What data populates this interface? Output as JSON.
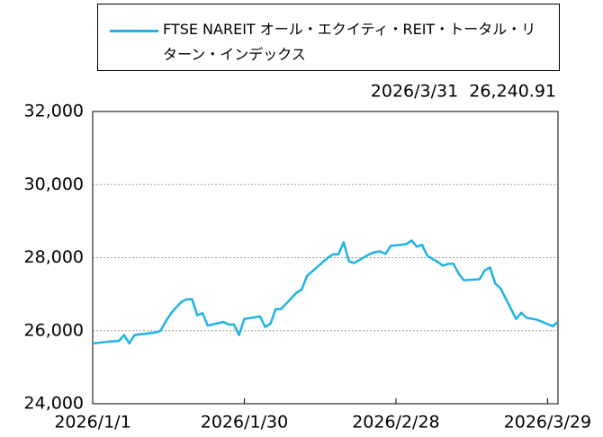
{
  "chart_data": {
    "type": "line",
    "annotation": "2026/3/31  26,240.91",
    "x": [
      "2026/1/1",
      "2026/1/4",
      "2026/1/6",
      "2026/1/7",
      "2026/1/8",
      "2026/1/9",
      "2026/1/13",
      "2026/1/14",
      "2026/1/15",
      "2026/1/16",
      "2026/1/17",
      "2026/1/18",
      "2026/1/19",
      "2026/1/20",
      "2026/1/21",
      "2026/1/22",
      "2026/1/23",
      "2026/1/26",
      "2026/1/27",
      "2026/1/28",
      "2026/1/29",
      "2026/1/30",
      "2026/2/2",
      "2026/2/3",
      "2026/2/4",
      "2026/2/5",
      "2026/2/6",
      "2026/2/7",
      "2026/2/8",
      "2026/2/9",
      "2026/2/10",
      "2026/2/11",
      "2026/2/13",
      "2026/2/15",
      "2026/2/16",
      "2026/2/17",
      "2026/2/18",
      "2026/2/19",
      "2026/2/20",
      "2026/2/23",
      "2026/2/24",
      "2026/2/25",
      "2026/2/26",
      "2026/2/27",
      "2026/3/2",
      "2026/3/3",
      "2026/3/4",
      "2026/3/5",
      "2026/3/6",
      "2026/3/8",
      "2026/3/9",
      "2026/3/10",
      "2026/3/11",
      "2026/3/12",
      "2026/3/13",
      "2026/3/16",
      "2026/3/17",
      "2026/3/18",
      "2026/3/19",
      "2026/3/20",
      "2026/3/23",
      "2026/3/24",
      "2026/3/25",
      "2026/3/27",
      "2026/3/30",
      "2026/3/31"
    ],
    "series": [
      {
        "name": "FTSE NAREIT オール・エクイティ・REIT・トータル・リターン・インデックス",
        "color": "#1eb3e4",
        "values": [
          25650,
          25700,
          25720,
          25880,
          25650,
          25880,
          25950,
          26000,
          26260,
          26480,
          26640,
          26790,
          26860,
          26860,
          26420,
          26480,
          26140,
          26240,
          26170,
          26170,
          25880,
          26320,
          26390,
          26100,
          26190,
          26590,
          26590,
          26740,
          26890,
          27040,
          27130,
          27500,
          27750,
          28000,
          28090,
          28090,
          28420,
          27900,
          27850,
          28100,
          28150,
          28170,
          28100,
          28320,
          28370,
          28470,
          28300,
          28350,
          28050,
          27880,
          27780,
          27830,
          27830,
          27560,
          27380,
          27410,
          27650,
          27730,
          27290,
          27160,
          26320,
          26490,
          26350,
          26300,
          26120,
          26240.91
        ]
      }
    ],
    "xlim": [
      "2026/1/1",
      "2026/3/31"
    ],
    "xticks": [
      "2026/1/1",
      "2026/1/30",
      "2026/2/28",
      "2026/3/29"
    ],
    "ylim": [
      24000,
      32000
    ],
    "yticks": [
      {
        "value": 24000,
        "label": "24,000"
      },
      {
        "value": 26000,
        "label": "26,000"
      },
      {
        "value": 28000,
        "label": "28,000"
      },
      {
        "value": 30000,
        "label": "30,000"
      },
      {
        "value": 32000,
        "label": "32,000"
      }
    ],
    "grid": true
  }
}
